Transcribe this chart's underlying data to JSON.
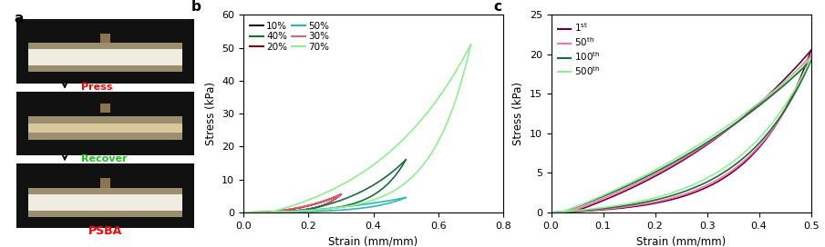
{
  "panel_a": {
    "label": "a",
    "press_text": "Press",
    "press_color": "#ff0000",
    "recover_text": "Recover",
    "recover_color": "#22bb22",
    "psba_text": "PSBA",
    "psba_color": "#ff0000"
  },
  "panel_b": {
    "label": "b",
    "xlabel": "Strain (mm/mm)",
    "ylabel": "Stress (kPa)",
    "xlim": [
      0.0,
      0.8
    ],
    "ylim": [
      0,
      60
    ],
    "xticks": [
      0.0,
      0.2,
      0.4,
      0.6,
      0.8
    ],
    "yticks": [
      0,
      10,
      20,
      30,
      40,
      50,
      60
    ],
    "curves": [
      {
        "label": "10%",
        "color": "#111111",
        "peak_strain": 0.3,
        "peak_stress": 5.5,
        "return_strain": 0.08,
        "k_load": 5.0,
        "k_unload": 1.5
      },
      {
        "label": "20%",
        "color": "#8b0000",
        "peak_strain": 0.3,
        "peak_stress": 5.5,
        "return_strain": 0.07,
        "k_load": 5.0,
        "k_unload": 1.5
      },
      {
        "label": "30%",
        "color": "#e8607a",
        "peak_strain": 0.3,
        "peak_stress": 5.5,
        "return_strain": 0.07,
        "k_load": 5.0,
        "k_unload": 1.5
      },
      {
        "label": "40%",
        "color": "#1a6b3a",
        "peak_strain": 0.5,
        "peak_stress": 16.0,
        "return_strain": 0.15,
        "k_load": 5.5,
        "k_unload": 1.8
      },
      {
        "label": "50%",
        "color": "#2db8b0",
        "peak_strain": 0.5,
        "peak_stress": 4.5,
        "return_strain": 0.1,
        "k_load": 4.5,
        "k_unload": 1.2
      },
      {
        "label": "70%",
        "color": "#90ee90",
        "peak_strain": 0.7,
        "peak_stress": 51.0,
        "return_strain": 0.08,
        "k_load": 6.0,
        "k_unload": 2.0
      }
    ],
    "legend_order": [
      0,
      3,
      1,
      4,
      2,
      5
    ]
  },
  "panel_c": {
    "label": "c",
    "xlabel": "Strain (mm/mm)",
    "ylabel": "Stress (kPa)",
    "xlim": [
      0.0,
      0.5
    ],
    "ylim": [
      0,
      25
    ],
    "xticks": [
      0.0,
      0.1,
      0.2,
      0.3,
      0.4,
      0.5
    ],
    "yticks": [
      0,
      5,
      10,
      15,
      20,
      25
    ],
    "curves": [
      {
        "label": "1",
        "sup": "st",
        "color": "#6b0030",
        "peak_strain": 0.5,
        "peak_stress": 20.5,
        "return_strain": 0.04,
        "k_load": 4.5,
        "k_unload": 1.2
      },
      {
        "label": "50",
        "sup": "th",
        "color": "#ff6eb4",
        "peak_strain": 0.5,
        "peak_stress": 19.8,
        "return_strain": 0.03,
        "k_load": 4.2,
        "k_unload": 1.1
      },
      {
        "label": "100",
        "sup": "th",
        "color": "#1a6b3a",
        "peak_strain": 0.5,
        "peak_stress": 19.2,
        "return_strain": 0.02,
        "k_load": 3.8,
        "k_unload": 1.0
      },
      {
        "label": "500",
        "sup": "th",
        "color": "#90ee90",
        "peak_strain": 0.5,
        "peak_stress": 19.5,
        "return_strain": 0.02,
        "k_load": 3.5,
        "k_unload": 0.9
      }
    ]
  }
}
